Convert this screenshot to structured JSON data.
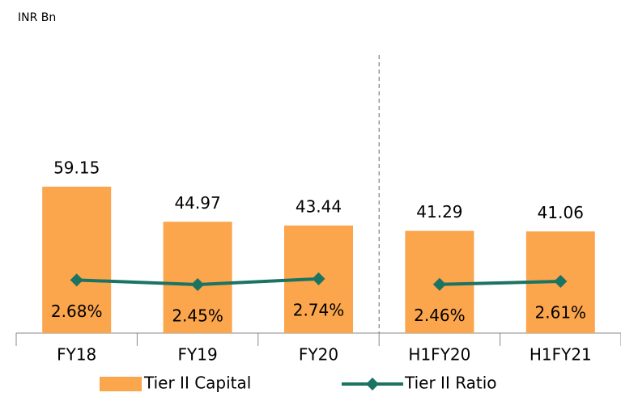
{
  "chart_data": {
    "type": "bar_line",
    "unit_label": "INR Bn",
    "categories": [
      "FY18",
      "FY19",
      "FY20",
      "H1FY20",
      "H1FY21"
    ],
    "series": [
      {
        "name": "Tier II Capital",
        "type": "bar",
        "color": "#fba54c",
        "values": [
          59.15,
          44.97,
          43.44,
          41.29,
          41.06
        ]
      },
      {
        "name": "Tier II Ratio",
        "type": "line",
        "axis": "y2",
        "color": "#1b7361",
        "values": [
          2.68,
          2.45,
          2.74,
          2.46,
          2.61
        ],
        "value_labels": [
          "2.68%",
          "2.45%",
          "2.74%",
          "2.46%",
          "2.61%"
        ]
      }
    ],
    "separator": {
      "after": "FY20",
      "style": "dashed"
    },
    "ylim": [
      0,
      80
    ],
    "y2lim": [
      0,
      10
    ],
    "legend": "bottom"
  }
}
